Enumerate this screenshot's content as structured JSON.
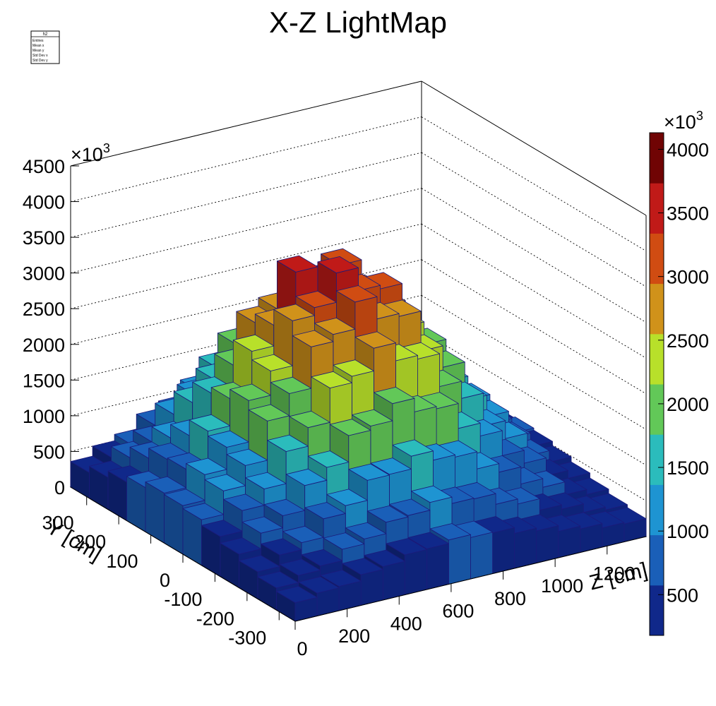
{
  "chart_data": {
    "type": "lego",
    "title": "X-Z LightMap",
    "x_label": "Z [cm]",
    "y_label": "Y [cm]",
    "multiplier": {
      "base": "×10",
      "exponent": "3"
    },
    "stats_box": {
      "title": "h2",
      "rows": [
        "Entries",
        "Mean x",
        "Mean y",
        "Std Dev x",
        "Std Dev y"
      ]
    },
    "xlim": [
      0,
      1350
    ],
    "ylim": [
      -350,
      350
    ],
    "zlim": [
      0,
      4500
    ],
    "xticks": [
      0,
      200,
      400,
      600,
      800,
      1000,
      1200
    ],
    "yticks": [
      -300,
      -200,
      -100,
      0,
      100,
      200,
      300
    ],
    "zticks": [
      0,
      500,
      1000,
      1500,
      2000,
      2500,
      3000,
      3500,
      4000,
      4500
    ],
    "grid": true,
    "values": [
      [
        260,
        320,
        340,
        430,
        470,
        560,
        570,
        620,
        580,
        570,
        490,
        450,
        370,
        330,
        270,
        250
      ],
      [
        310,
        410,
        470,
        630,
        700,
        860,
        880,
        990,
        900,
        890,
        740,
        670,
        510,
        450,
        330,
        290
      ],
      [
        380,
        540,
        640,
        900,
        1010,
        1290,
        1300,
        1480,
        1350,
        1320,
        1080,
        960,
        720,
        600,
        420,
        350
      ],
      [
        470,
        690,
        860,
        1210,
        1390,
        1760,
        1820,
        2060,
        1870,
        1840,
        1490,
        1310,
        960,
        780,
        530,
        420
      ],
      [
        560,
        850,
        1080,
        1530,
        1790,
        2270,
        2360,
        2680,
        2430,
        2380,
        1920,
        1680,
        1220,
        970,
        650,
        490
      ],
      [
        640,
        970,
        1250,
        1800,
        2110,
        2690,
        2790,
        3170,
        2860,
        2820,
        2260,
        1960,
        1420,
        1120,
        740,
        550
      ],
      [
        680,
        1040,
        1350,
        1930,
        2270,
        2900,
        3010,
        3420,
        3100,
        3050,
        2440,
        2120,
        1530,
        1200,
        790,
        580
      ],
      [
        700,
        960,
        1420,
        1800,
        2390,
        2680,
        3350,
        3150,
        3300,
        2860,
        2580,
        1970,
        1610,
        1110,
        830,
        560
      ],
      [
        620,
        940,
        1200,
        1720,
        2040,
        2560,
        2680,
        3010,
        2790,
        2690,
        2190,
        1880,
        1370,
        1080,
        720,
        530
      ],
      [
        540,
        800,
        1010,
        1430,
        1680,
        2100,
        2200,
        2460,
        2280,
        2200,
        1800,
        1550,
        1140,
        900,
        620,
        460
      ],
      [
        450,
        650,
        800,
        1110,
        1300,
        1610,
        1690,
        1870,
        1740,
        1690,
        1390,
        1200,
        900,
        720,
        510,
        390
      ],
      [
        360,
        500,
        590,
        800,
        910,
        1130,
        1170,
        1300,
        1210,
        1170,
        980,
        860,
        650,
        540,
        400,
        330
      ]
    ],
    "colorbar": {
      "lim": [
        180,
        4130
      ],
      "ticks": [
        500,
        1000,
        1500,
        2000,
        2500,
        3000,
        3500,
        4000
      ],
      "colors": [
        "#10288a",
        "#1a5fb8",
        "#1e94d2",
        "#2bbcbc",
        "#62c858",
        "#b8e02a",
        "#d0921a",
        "#d04c12",
        "#c01a18",
        "#700404"
      ]
    }
  }
}
